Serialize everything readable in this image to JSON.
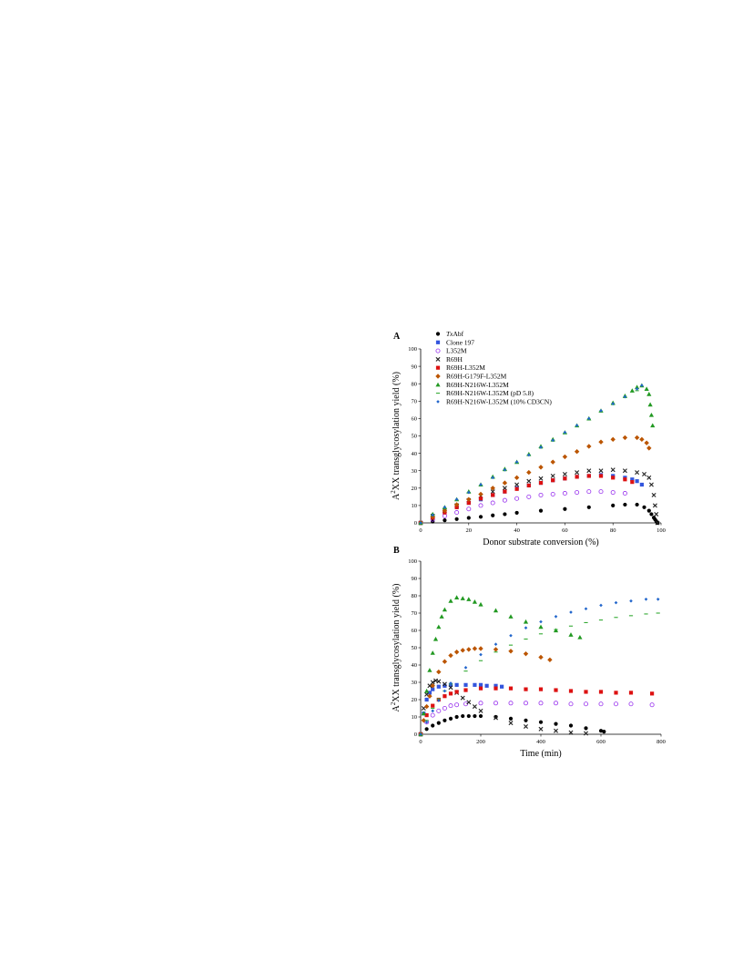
{
  "colors": {
    "TxAbf": "#000000",
    "clone197": "#3355dd",
    "L352M": "#9933ee",
    "R69H": "#222222",
    "R69H_L352M": "#dd1111",
    "R69H_G179F_L352M": "#bb5500",
    "R69H_N216W_L352M": "#229922",
    "R69H_N216W_L352M_pD58": "#33aa33",
    "R69H_N216W_L352M_CD3CN": "#2266cc"
  },
  "chart_data": [
    {
      "panel": "A",
      "type": "scatter",
      "xlabel": "Donor substrate conversion (%)",
      "ylabel": "A2XX transglycosylation yield (%)",
      "ylabel_main_before": "A",
      "ylabel_sup": "2",
      "ylabel_main_after": "XX transglycosylation yield (%)",
      "xlim": [
        0,
        100
      ],
      "ylim": [
        0,
        100
      ],
      "xticks": [
        "0",
        "20",
        "40",
        "60",
        "80",
        "100"
      ],
      "yticks": [
        "0",
        "10",
        "20",
        "30",
        "40",
        "50",
        "60",
        "70",
        "80",
        "90",
        "100"
      ],
      "legend": {
        "position": "top-left",
        "entries": [
          {
            "label_italic": "Tx",
            "label_rest": "Abf",
            "marker": "circle",
            "color_key": "TxAbf"
          },
          {
            "label_italic": "",
            "label_rest": "Clone 197",
            "marker": "square",
            "color_key": "clone197"
          },
          {
            "label_italic": "",
            "label_rest": "L352M",
            "marker": "open-circle",
            "color_key": "L352M"
          },
          {
            "label_italic": "",
            "label_rest": "R69H",
            "marker": "cross",
            "color_key": "R69H"
          },
          {
            "label_italic": "",
            "label_rest": "R69H-L352M",
            "marker": "square",
            "color_key": "R69H_L352M"
          },
          {
            "label_italic": "",
            "label_rest": "R69H-G179F-L352M",
            "marker": "diamond",
            "color_key": "R69H_G179F_L352M"
          },
          {
            "label_italic": "",
            "label_rest": "R69H-N216W-L352M",
            "marker": "triangle",
            "color_key": "R69H_N216W_L352M"
          },
          {
            "label_italic": "",
            "label_rest": "R69H-N216W-L352M (pD 5.8)",
            "marker": "dash",
            "color_key": "R69H_N216W_L352M_pD58"
          },
          {
            "label_italic": "",
            "label_rest": "R69H-N216W-L352M (10% CD3CN)",
            "marker": "small-diamond",
            "color_key": "R69H_N216W_L352M_CD3CN"
          }
        ]
      },
      "series": [
        {
          "color_key": "TxAbf",
          "marker": "circle",
          "x": [
            0,
            5,
            10,
            15,
            20,
            25,
            30,
            35,
            40,
            50,
            60,
            70,
            80,
            85,
            90,
            93,
            95,
            96,
            97,
            97.5,
            98,
            98.5
          ],
          "y": [
            0,
            0.8,
            1.5,
            2.2,
            2.9,
            3.5,
            4.3,
            5,
            5.8,
            7,
            8,
            9,
            10,
            10.5,
            10.5,
            9,
            7,
            5,
            3,
            2,
            1,
            0
          ]
        },
        {
          "color_key": "clone197",
          "marker": "square",
          "x": [
            0,
            5,
            10,
            15,
            20,
            25,
            30,
            35,
            40,
            45,
            50,
            55,
            60,
            65,
            70,
            75,
            80,
            85,
            88,
            90,
            92
          ],
          "y": [
            0,
            3,
            6,
            9,
            11.5,
            13.5,
            16,
            18,
            20,
            21.5,
            23,
            24.5,
            25.5,
            26.5,
            27,
            27.5,
            27,
            26,
            25,
            24,
            22
          ]
        },
        {
          "color_key": "L352M",
          "marker": "open-circle",
          "x": [
            0,
            5,
            10,
            15,
            20,
            25,
            30,
            35,
            40,
            45,
            50,
            55,
            60,
            65,
            70,
            75,
            80,
            85
          ],
          "y": [
            0,
            2,
            4,
            6,
            8,
            10,
            11.5,
            13,
            14,
            15,
            16,
            16.5,
            17,
            17.5,
            18,
            18,
            17.5,
            17
          ]
        },
        {
          "color_key": "R69H",
          "marker": "cross",
          "x": [
            0,
            5,
            10,
            15,
            20,
            25,
            30,
            35,
            40,
            45,
            50,
            55,
            60,
            65,
            70,
            75,
            80,
            85,
            90,
            93,
            95,
            96,
            97,
            97.5,
            98,
            98.5
          ],
          "y": [
            0,
            4,
            7,
            10,
            13,
            15.5,
            18,
            20,
            22,
            24,
            25.5,
            27,
            28,
            29,
            30,
            30,
            30.5,
            30,
            29,
            28,
            26,
            22,
            16,
            10,
            5,
            0
          ]
        },
        {
          "color_key": "R69H_L352M",
          "marker": "square",
          "x": [
            0,
            5,
            10,
            15,
            20,
            25,
            30,
            35,
            40,
            45,
            50,
            55,
            60,
            65,
            70,
            75,
            80,
            85,
            88
          ],
          "y": [
            0,
            3,
            6,
            9,
            11.5,
            14,
            16,
            18,
            19.5,
            21.5,
            23,
            24.5,
            25.5,
            26.5,
            27,
            27,
            26,
            25,
            23.5
          ]
        },
        {
          "color_key": "R69H_G179F_L352M",
          "marker": "diamond",
          "x": [
            0,
            5,
            10,
            15,
            20,
            25,
            30,
            35,
            40,
            45,
            50,
            55,
            60,
            65,
            70,
            75,
            80,
            85,
            90,
            92,
            94,
            95
          ],
          "y": [
            0,
            3.5,
            7,
            10.5,
            13.5,
            16.5,
            20,
            23,
            26,
            29,
            32,
            35,
            38,
            41,
            44,
            46.5,
            48,
            49,
            49,
            48,
            46,
            43
          ]
        },
        {
          "color_key": "R69H_N216W_L352M",
          "marker": "triangle",
          "x": [
            0,
            5,
            10,
            15,
            20,
            25,
            30,
            35,
            40,
            45,
            50,
            55,
            60,
            65,
            70,
            75,
            80,
            85,
            88,
            90,
            92,
            94,
            95,
            95.5,
            96,
            96.5
          ],
          "y": [
            0,
            5,
            9,
            13.5,
            18,
            22,
            26.5,
            31,
            35,
            39.5,
            44,
            48,
            52,
            56,
            60,
            64.5,
            69,
            73,
            76,
            78,
            79,
            77,
            74,
            68,
            62,
            56
          ]
        },
        {
          "color_key": "R69H_N216W_L352M_pD58",
          "marker": "dash",
          "x": [
            0,
            5,
            10,
            15,
            20,
            25,
            30,
            35,
            40,
            45,
            50,
            55,
            60,
            65,
            70,
            75,
            80,
            85,
            90
          ],
          "y": [
            0,
            4.5,
            8.5,
            13,
            17.5,
            21.5,
            26,
            30,
            34.5,
            39,
            43,
            47,
            51.5,
            55.5,
            59.5,
            64,
            68,
            72,
            76
          ]
        },
        {
          "color_key": "R69H_N216W_L352M_CD3CN",
          "marker": "small-diamond",
          "x": [
            0,
            5,
            10,
            15,
            20,
            25,
            30,
            35,
            40,
            45,
            50,
            55,
            60,
            65,
            70,
            75,
            80,
            85,
            90,
            92
          ],
          "y": [
            0,
            4.5,
            9,
            13.5,
            17.5,
            22,
            26,
            30.5,
            35,
            39,
            43.5,
            47.5,
            52,
            56,
            60,
            64.5,
            68.5,
            72.5,
            77,
            79
          ]
        }
      ]
    },
    {
      "panel": "B",
      "type": "scatter",
      "xlabel": "Time (min)",
      "ylabel": "A2XX transglycosylation yield (%)",
      "ylabel_main_before": "A",
      "ylabel_sup": "2",
      "ylabel_main_after": "XX transglycosylation yield (%)",
      "xlim": [
        0,
        800
      ],
      "ylim": [
        0,
        100
      ],
      "xticks": [
        "0",
        "200",
        "400",
        "600",
        "800"
      ],
      "yticks": [
        "0",
        "10",
        "20",
        "30",
        "40",
        "50",
        "60",
        "70",
        "80",
        "90",
        "100"
      ],
      "series": [
        {
          "color_key": "TxAbf",
          "marker": "circle",
          "x": [
            0,
            20,
            40,
            60,
            80,
            100,
            120,
            140,
            160,
            180,
            200,
            250,
            300,
            350,
            400,
            450,
            500,
            550,
            600,
            610
          ],
          "y": [
            0,
            3,
            5,
            6.5,
            8,
            9,
            10,
            10.5,
            10.5,
            10.5,
            10.5,
            10,
            9,
            8,
            7,
            6,
            5,
            3.5,
            2,
            1.5
          ]
        },
        {
          "color_key": "clone197",
          "marker": "square",
          "x": [
            0,
            10,
            20,
            30,
            40,
            60,
            80,
            100,
            120,
            150,
            180,
            200,
            220,
            250,
            270
          ],
          "y": [
            0,
            12,
            20,
            24,
            26,
            27.5,
            28,
            28.5,
            28.5,
            28.5,
            28.5,
            28.5,
            28,
            28,
            27.5
          ]
        },
        {
          "color_key": "L352M",
          "marker": "open-circle",
          "x": [
            0,
            20,
            40,
            60,
            80,
            100,
            120,
            150,
            200,
            250,
            300,
            350,
            400,
            450,
            500,
            550,
            600,
            650,
            700,
            770
          ],
          "y": [
            0,
            7,
            11,
            13.5,
            15,
            16.5,
            17,
            17.5,
            18,
            18,
            18,
            18,
            18,
            18,
            17.5,
            17.5,
            17.5,
            17.5,
            17.5,
            17
          ]
        },
        {
          "color_key": "R69H",
          "marker": "cross",
          "x": [
            0,
            10,
            20,
            30,
            40,
            50,
            60,
            80,
            100,
            120,
            140,
            160,
            180,
            200,
            250,
            300,
            350,
            400,
            450,
            500,
            550
          ],
          "y": [
            0,
            15,
            23,
            28,
            30,
            31,
            30.5,
            29,
            27,
            24,
            21,
            18.5,
            16,
            13.5,
            9.5,
            6.5,
            4.5,
            3,
            2,
            1,
            0.5
          ]
        },
        {
          "color_key": "R69H_L352M",
          "marker": "square",
          "x": [
            0,
            20,
            40,
            60,
            80,
            100,
            120,
            150,
            200,
            250,
            300,
            350,
            400,
            450,
            500,
            550,
            600,
            650,
            700,
            770
          ],
          "y": [
            0,
            11,
            16.5,
            20,
            22,
            23.5,
            24.5,
            25.5,
            26.5,
            26.5,
            26.5,
            26,
            26,
            25.5,
            25,
            24.5,
            24.5,
            24,
            24,
            23.5
          ]
        },
        {
          "color_key": "R69H_G179F_L352M",
          "marker": "diamond",
          "x": [
            0,
            10,
            20,
            30,
            40,
            60,
            80,
            100,
            120,
            140,
            160,
            180,
            200,
            250,
            300,
            350,
            400,
            430
          ],
          "y": [
            0,
            8,
            16,
            22,
            28,
            36,
            42,
            45.5,
            47.5,
            48.5,
            49,
            49.5,
            49.5,
            49,
            48,
            46.5,
            44.5,
            43
          ]
        },
        {
          "color_key": "R69H_N216W_L352M",
          "marker": "triangle",
          "x": [
            0,
            10,
            20,
            30,
            40,
            50,
            60,
            70,
            80,
            100,
            120,
            140,
            160,
            180,
            200,
            250,
            300,
            350,
            400,
            450,
            500,
            530
          ],
          "y": [
            0,
            12,
            25,
            37,
            47,
            55,
            62,
            68,
            72,
            77,
            79,
            78.5,
            78,
            76.5,
            75,
            71.5,
            68,
            65,
            62,
            60,
            57.5,
            56
          ]
        },
        {
          "color_key": "R69H_N216W_L352M_pD58",
          "marker": "dash",
          "x": [
            0,
            20,
            40,
            60,
            80,
            100,
            150,
            200,
            250,
            300,
            350,
            400,
            450,
            500,
            550,
            600,
            650,
            700,
            750,
            790
          ],
          "y": [
            0,
            8,
            15,
            20.5,
            25,
            29,
            36.5,
            42.5,
            47.5,
            51.5,
            55,
            58,
            60.5,
            62.5,
            64.5,
            66,
            67.5,
            68.5,
            69.5,
            70
          ]
        },
        {
          "color_key": "R69H_N216W_L352M_CD3CN",
          "marker": "small-diamond",
          "x": [
            0,
            20,
            40,
            60,
            80,
            100,
            150,
            200,
            250,
            300,
            350,
            400,
            450,
            500,
            550,
            600,
            650,
            700,
            750,
            790
          ],
          "y": [
            0,
            7,
            13.5,
            19.5,
            25,
            29.5,
            38.5,
            46,
            52,
            57,
            61.5,
            65,
            68,
            70.5,
            72.5,
            74.5,
            76,
            77,
            78,
            78
          ]
        }
      ]
    }
  ]
}
